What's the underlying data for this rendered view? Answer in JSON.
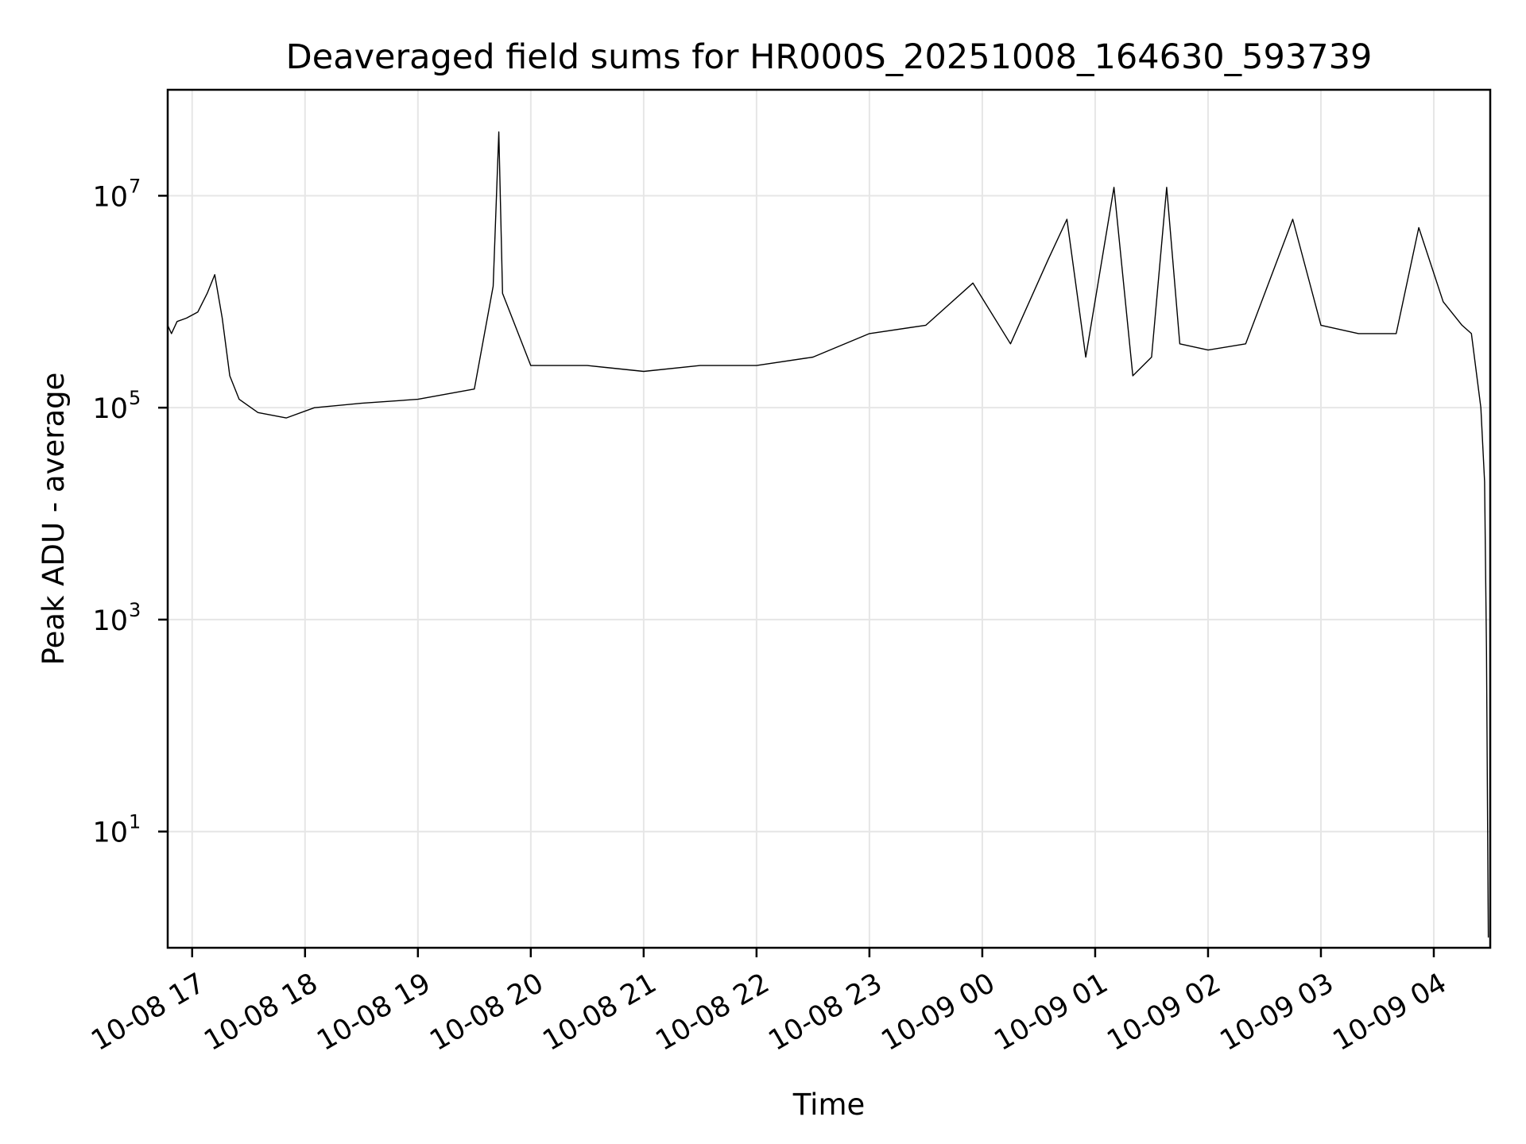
{
  "chart_data": {
    "type": "line",
    "title": "Deaveraged field sums for HR000S_20251008_164630_593739",
    "xlabel": "Time",
    "ylabel": "Peak ADU - average",
    "yscale": "log",
    "ylim": [
      0.8,
      100000000
    ],
    "xlim": [
      "2025-10-08 16:47",
      "2025-10-09 04:30"
    ],
    "grid": true,
    "line_color": "#000000",
    "grid_color": "#e6e6e6",
    "x_ticks": [
      "10-08 17",
      "10-08 18",
      "10-08 19",
      "10-08 20",
      "10-08 21",
      "10-08 22",
      "10-08 23",
      "10-09 00",
      "10-09 01",
      "10-09 02",
      "10-09 03",
      "10-09 04"
    ],
    "y_ticks": [
      {
        "base": "10",
        "exp": "1",
        "value": 10
      },
      {
        "base": "10",
        "exp": "3",
        "value": 1000
      },
      {
        "base": "10",
        "exp": "5",
        "value": 100000
      },
      {
        "base": "10",
        "exp": "7",
        "value": 10000000
      }
    ],
    "series": [
      {
        "points": [
          [
            "2025-10-08 16:47",
            600000
          ],
          [
            "2025-10-08 16:49",
            500000
          ],
          [
            "2025-10-08 16:52",
            650000
          ],
          [
            "2025-10-08 16:57",
            700000
          ],
          [
            "2025-10-08 17:03",
            800000
          ],
          [
            "2025-10-08 17:08",
            1200000
          ],
          [
            "2025-10-08 17:12",
            1800000
          ],
          [
            "2025-10-08 17:16",
            700000
          ],
          [
            "2025-10-08 17:20",
            200000
          ],
          [
            "2025-10-08 17:25",
            120000
          ],
          [
            "2025-10-08 17:35",
            90000
          ],
          [
            "2025-10-08 17:50",
            80000
          ],
          [
            "2025-10-08 18:05",
            100000
          ],
          [
            "2025-10-08 18:30",
            110000
          ],
          [
            "2025-10-08 19:00",
            120000
          ],
          [
            "2025-10-08 19:30",
            150000
          ],
          [
            "2025-10-08 19:40",
            1400000
          ],
          [
            "2025-10-08 19:43",
            40000000
          ],
          [
            "2025-10-08 19:45",
            1200000
          ],
          [
            "2025-10-08 20:00",
            250000
          ],
          [
            "2025-10-08 20:30",
            250000
          ],
          [
            "2025-10-08 21:00",
            220000
          ],
          [
            "2025-10-08 21:30",
            250000
          ],
          [
            "2025-10-08 22:00",
            250000
          ],
          [
            "2025-10-08 22:30",
            300000
          ],
          [
            "2025-10-08 23:00",
            500000
          ],
          [
            "2025-10-08 23:30",
            600000
          ],
          [
            "2025-10-08 23:55",
            1500000
          ],
          [
            "2025-10-09 00:15",
            400000
          ],
          [
            "2025-10-09 00:35",
            2500000
          ],
          [
            "2025-10-09 00:45",
            6000000
          ],
          [
            "2025-10-09 00:55",
            300000
          ],
          [
            "2025-10-09 01:10",
            12000000
          ],
          [
            "2025-10-09 01:20",
            200000
          ],
          [
            "2025-10-09 01:30",
            300000
          ],
          [
            "2025-10-09 01:38",
            12000000
          ],
          [
            "2025-10-09 01:45",
            400000
          ],
          [
            "2025-10-09 02:00",
            350000
          ],
          [
            "2025-10-09 02:20",
            400000
          ],
          [
            "2025-10-09 02:45",
            6000000
          ],
          [
            "2025-10-09 03:00",
            600000
          ],
          [
            "2025-10-09 03:20",
            500000
          ],
          [
            "2025-10-09 03:40",
            500000
          ],
          [
            "2025-10-09 03:52",
            5000000
          ],
          [
            "2025-10-09 04:05",
            1000000
          ],
          [
            "2025-10-09 04:15",
            600000
          ],
          [
            "2025-10-09 04:20",
            500000
          ],
          [
            "2025-10-09 04:25",
            100000
          ],
          [
            "2025-10-09 04:27",
            20000
          ],
          [
            "2025-10-09 04:28",
            500
          ],
          [
            "2025-10-09 04:29",
            1
          ]
        ]
      }
    ]
  }
}
